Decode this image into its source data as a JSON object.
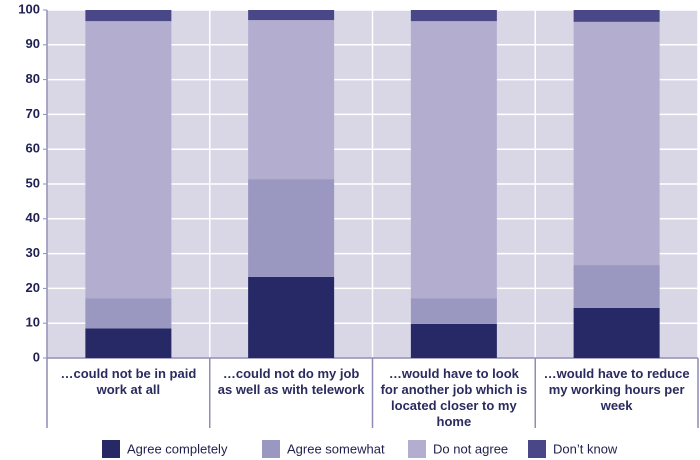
{
  "chart_data": {
    "type": "stacked_bar",
    "categories": [
      "…could not be in paid work at all",
      "…could not do my job as well as with telework",
      "…would have to look for another job which is located closer to my home",
      "…would have to reduce my working hours per week"
    ],
    "series": [
      {
        "name": "Agree completely",
        "color": "#262966",
        "values": [
          8.5,
          23.3,
          9.8,
          14.4
        ]
      },
      {
        "name": "Agree somewhat",
        "color": "#9a97c0",
        "values": [
          8.7,
          28.1,
          7.4,
          12.3
        ]
      },
      {
        "name": "Do not agree",
        "color": "#b3aed0",
        "values": [
          79.6,
          45.7,
          79.6,
          69.9
        ]
      },
      {
        "name": "Don’t know",
        "color": "#494787",
        "values": [
          3.2,
          2.9,
          3.2,
          3.4
        ]
      }
    ],
    "ylim": [
      0,
      100
    ],
    "yticks": [
      0,
      10,
      20,
      30,
      40,
      50,
      60,
      70,
      80,
      90,
      100
    ],
    "grid": true
  }
}
